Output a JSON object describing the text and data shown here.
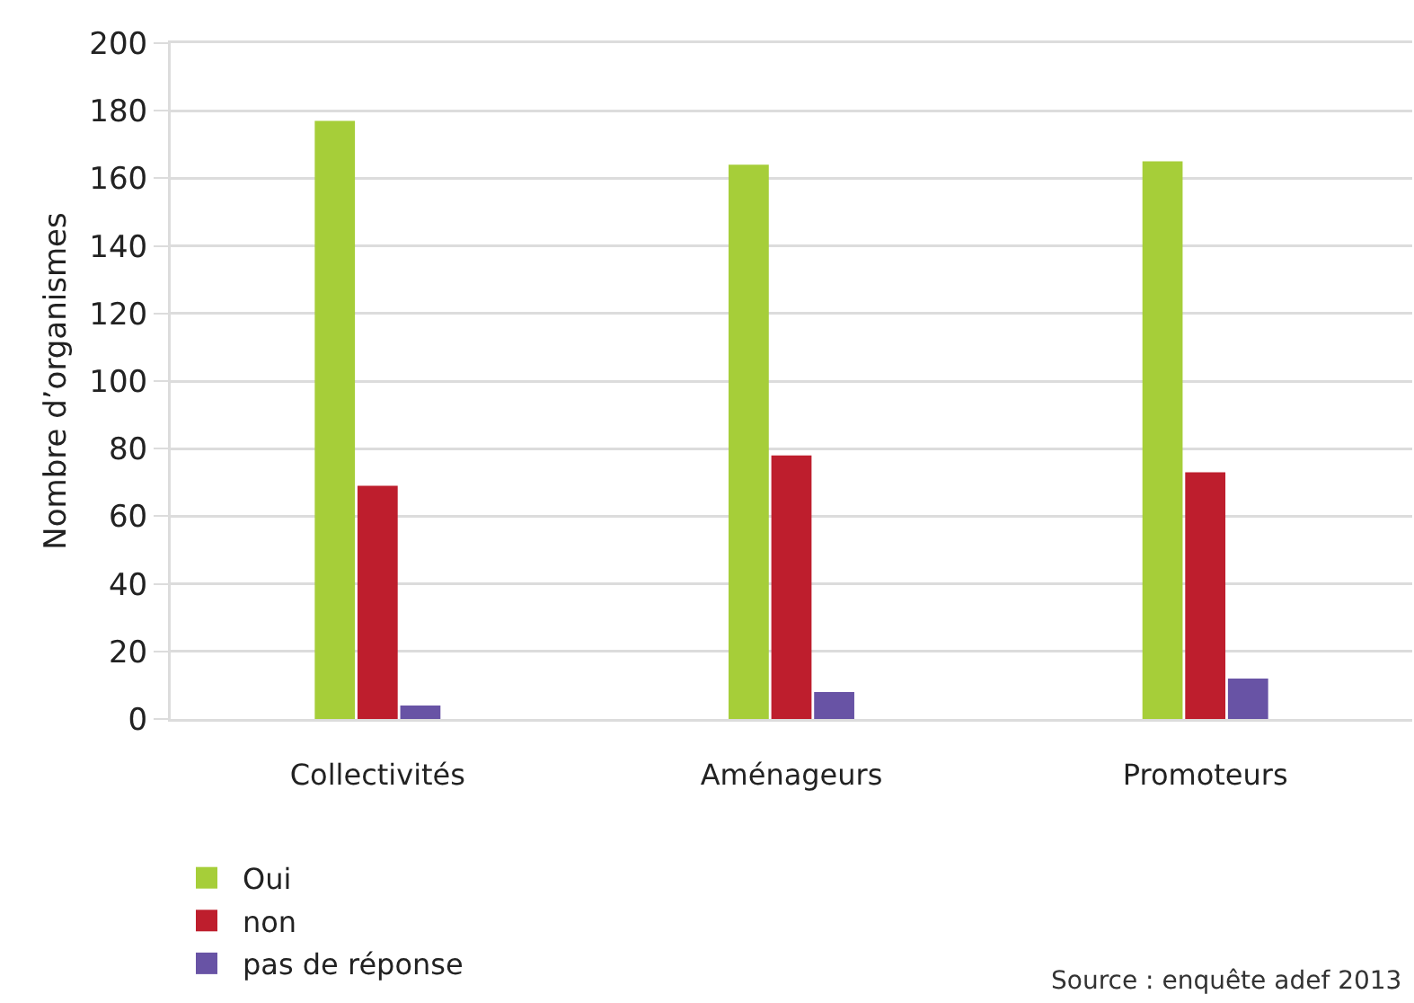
{
  "chart_data": {
    "type": "bar",
    "ylabel": "Nombre d’organismes",
    "categories": [
      "Collectivités",
      "Aménageurs",
      "Promoteurs"
    ],
    "series": [
      {
        "name": "Oui",
        "color": "#a6ce39",
        "values": [
          177,
          164,
          165
        ]
      },
      {
        "name": "non",
        "color": "#be1e2d",
        "values": [
          69,
          78,
          73
        ]
      },
      {
        "name": "pas de réponse",
        "color": "#6853a5",
        "values": [
          4,
          8,
          12
        ]
      }
    ],
    "ylim": [
      0,
      200
    ],
    "yticks": [
      0,
      20,
      40,
      60,
      80,
      100,
      120,
      140,
      160,
      180,
      200
    ],
    "grid": "y",
    "legend": "bottom left",
    "annotations": [
      "Source : enquête adef 2013"
    ]
  }
}
